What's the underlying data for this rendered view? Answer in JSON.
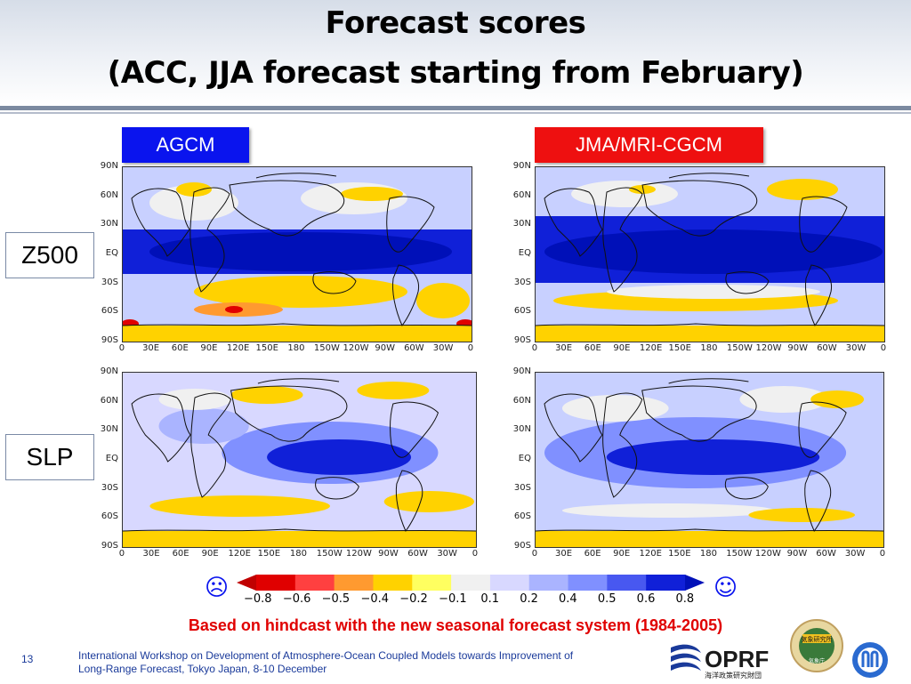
{
  "title_line1": "Forecast scores",
  "title_line2": "(ACC, JJA forecast starting from February)",
  "models": {
    "left": "AGCM",
    "right": "JMA/MRI-CGCM"
  },
  "rows": {
    "top": "Z500",
    "bottom": "SLP"
  },
  "axes": {
    "lat": [
      "90N",
      "60N",
      "30N",
      "EQ",
      "30S",
      "60S",
      "90S"
    ],
    "lon": [
      "0",
      "30E",
      "60E",
      "90E",
      "120E",
      "150E",
      "180",
      "150W",
      "120W",
      "90W",
      "60W",
      "30W",
      "0"
    ]
  },
  "colorbar": {
    "labels": [
      "−0.8",
      "−0.6",
      "−0.5",
      "−0.4",
      "−0.2",
      "−0.1",
      "0.1",
      "0.2",
      "0.4",
      "0.5",
      "0.6",
      "0.8"
    ],
    "colors": [
      "#c00000",
      "#e00000",
      "#ff4040",
      "#ff9a30",
      "#ffd200",
      "#ffff60",
      "#f0f0f0",
      "#d8d8ff",
      "#aab4ff",
      "#8090ff",
      "#4858f0",
      "#1020d8",
      "#0010b8"
    ],
    "sad_icon": "sad-face-icon",
    "happy_icon": "smiley-face-icon"
  },
  "note": "Based on hindcast with the new seasonal forecast system   (1984-2005)",
  "page_number": "13",
  "footer_line1": "International Workshop on Development of Atmosphere-Ocean Coupled Models towards Improvement of",
  "footer_line2": "Long-Range Forecast, Tokyo Japan, 8-10 December",
  "logos": {
    "oprf_text": "OPRF",
    "oprf_sub": "海洋政策研究財団",
    "mri_text": "気象研究所",
    "mri_sub": "気象庁"
  },
  "colors": {
    "agcm": "#0a14ee",
    "cgcm": "#ee1010",
    "footer": "#1a3a9a",
    "note": "#e00000"
  }
}
